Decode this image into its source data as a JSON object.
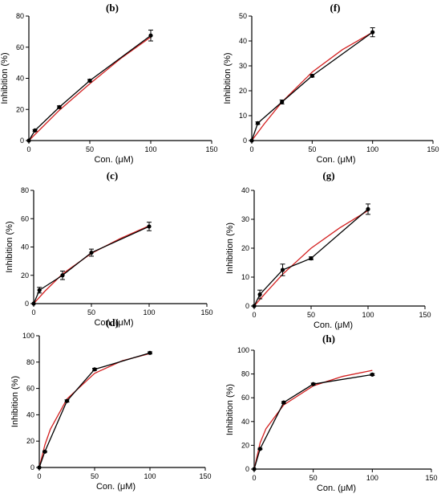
{
  "colors": {
    "data": "#000000",
    "fit": "#d32020"
  },
  "chart_data": [
    {
      "type": "line",
      "panel": "(b)",
      "xlabel": "Con. (μM)",
      "ylabel": "Inhibition (%)",
      "xlim": [
        0,
        150
      ],
      "ylim": [
        0,
        80
      ],
      "xticks": [
        0,
        50,
        100,
        150
      ],
      "yticks": [
        0,
        20,
        40,
        60,
        80
      ],
      "x": [
        0,
        5,
        25,
        50,
        100
      ],
      "y": [
        0,
        6.5,
        21.5,
        38.5,
        67.5
      ],
      "err": [
        0,
        0.5,
        0.8,
        0.8,
        3.5
      ],
      "fit": [
        [
          0,
          0
        ],
        [
          10,
          7.8
        ],
        [
          25,
          19.5
        ],
        [
          50,
          36.5
        ],
        [
          75,
          52.5
        ],
        [
          100,
          66.5
        ]
      ]
    },
    {
      "type": "line",
      "panel": "(f)",
      "xlabel": "Con. (μM)",
      "ylabel": "Inhibition (%)",
      "xlim": [
        0,
        150
      ],
      "ylim": [
        0,
        50
      ],
      "xticks": [
        0,
        50,
        100,
        150
      ],
      "yticks": [
        0,
        10,
        20,
        30,
        40,
        50
      ],
      "x": [
        0,
        5,
        25,
        50,
        100
      ],
      "y": [
        0,
        7,
        15.5,
        26,
        43.5
      ],
      "err": [
        0,
        0.5,
        0.8,
        0.5,
        1.8
      ],
      "fit": [
        [
          0,
          0
        ],
        [
          10,
          6.5
        ],
        [
          25,
          15.5
        ],
        [
          50,
          27.5
        ],
        [
          75,
          36.5
        ],
        [
          100,
          43.5
        ]
      ]
    },
    {
      "type": "line",
      "panel": "(c)",
      "xlabel": "Con. (μM)",
      "ylabel": "Inhibition (%)",
      "xlim": [
        0,
        150
      ],
      "ylim": [
        0,
        80
      ],
      "xticks": [
        0,
        50,
        100,
        150
      ],
      "yticks": [
        0,
        20,
        40,
        60,
        80
      ],
      "x": [
        0,
        5,
        25,
        50,
        100
      ],
      "y": [
        0,
        9.5,
        20,
        36,
        54.5
      ],
      "err": [
        0,
        2,
        3,
        2.5,
        3
      ],
      "fit": [
        [
          0,
          0
        ],
        [
          10,
          9
        ],
        [
          25,
          21
        ],
        [
          50,
          35.5
        ],
        [
          75,
          46
        ],
        [
          100,
          55
        ]
      ]
    },
    {
      "type": "line",
      "panel": "(g)",
      "xlabel": "Con. (μM)",
      "ylabel": "Inhibition (%)",
      "xlim": [
        0,
        150
      ],
      "ylim": [
        0,
        40
      ],
      "xticks": [
        0,
        50,
        100,
        150
      ],
      "yticks": [
        0,
        10,
        20,
        30,
        40
      ],
      "x": [
        0,
        5,
        25,
        50,
        100
      ],
      "y": [
        0,
        4,
        12.5,
        16.5,
        33.5
      ],
      "err": [
        0,
        1.5,
        2,
        0.5,
        1.8
      ],
      "fit": [
        [
          0,
          0
        ],
        [
          10,
          4.5
        ],
        [
          25,
          11
        ],
        [
          50,
          20
        ],
        [
          75,
          27
        ],
        [
          100,
          33
        ]
      ]
    },
    {
      "type": "line",
      "panel": "(d)",
      "xlabel": "Con. (μM)",
      "ylabel": "Inhibition (%)",
      "xlim": [
        0,
        150
      ],
      "ylim": [
        0,
        100
      ],
      "xticks": [
        0,
        50,
        100,
        150
      ],
      "yticks": [
        0,
        20,
        40,
        60,
        80,
        100
      ],
      "x": [
        0,
        5,
        25,
        50,
        100
      ],
      "y": [
        0,
        12,
        50.5,
        74.5,
        87
      ],
      "err": [
        0,
        0.5,
        0.8,
        0.8,
        0.8
      ],
      "fit": [
        [
          0,
          0
        ],
        [
          5,
          17
        ],
        [
          10,
          29
        ],
        [
          25,
          52
        ],
        [
          50,
          71.5
        ],
        [
          75,
          81
        ],
        [
          100,
          86.5
        ]
      ]
    },
    {
      "type": "line",
      "panel": "(h)",
      "xlabel": "Con. (μM)",
      "ylabel": "Inhibition (%)",
      "xlim": [
        0,
        150
      ],
      "ylim": [
        0,
        100
      ],
      "xticks": [
        0,
        50,
        100,
        150
      ],
      "yticks": [
        0,
        20,
        40,
        60,
        80,
        100
      ],
      "x": [
        0,
        5,
        25,
        50,
        100
      ],
      "y": [
        0,
        17,
        56,
        71.5,
        79.5
      ],
      "err": [
        0,
        0.5,
        0.8,
        0.8,
        0.8
      ],
      "fit": [
        [
          0,
          0
        ],
        [
          5,
          22
        ],
        [
          10,
          34
        ],
        [
          25,
          54
        ],
        [
          50,
          70
        ],
        [
          75,
          78
        ],
        [
          100,
          83
        ]
      ]
    }
  ]
}
